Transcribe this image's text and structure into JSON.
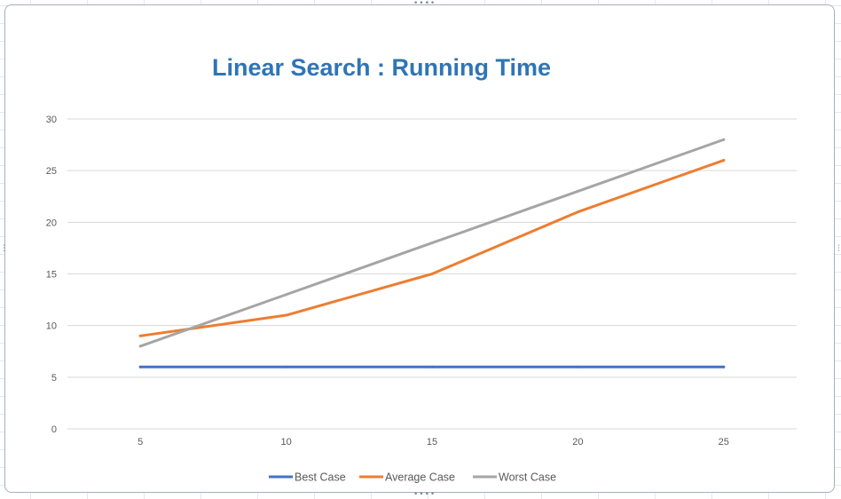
{
  "chart_data": {
    "type": "line",
    "title": "Linear Search : Running Time",
    "xlabel": "",
    "ylabel": "",
    "categories": [
      "5",
      "10",
      "15",
      "20",
      "25"
    ],
    "ylim": [
      0,
      30
    ],
    "yticks": [
      "0",
      "5",
      "10",
      "15",
      "20",
      "25",
      "30"
    ],
    "grid": true,
    "legend_position": "bottom",
    "series": [
      {
        "name": "Best Case",
        "values": [
          6,
          6,
          6,
          6,
          6
        ],
        "color": "#4472c4"
      },
      {
        "name": "Average Case",
        "values": [
          9,
          11,
          15,
          21,
          26
        ],
        "color": "#ed7d31"
      },
      {
        "name": "Worst Case",
        "values": [
          8,
          13,
          18,
          23,
          28
        ],
        "color": "#a5a5a5"
      }
    ]
  }
}
